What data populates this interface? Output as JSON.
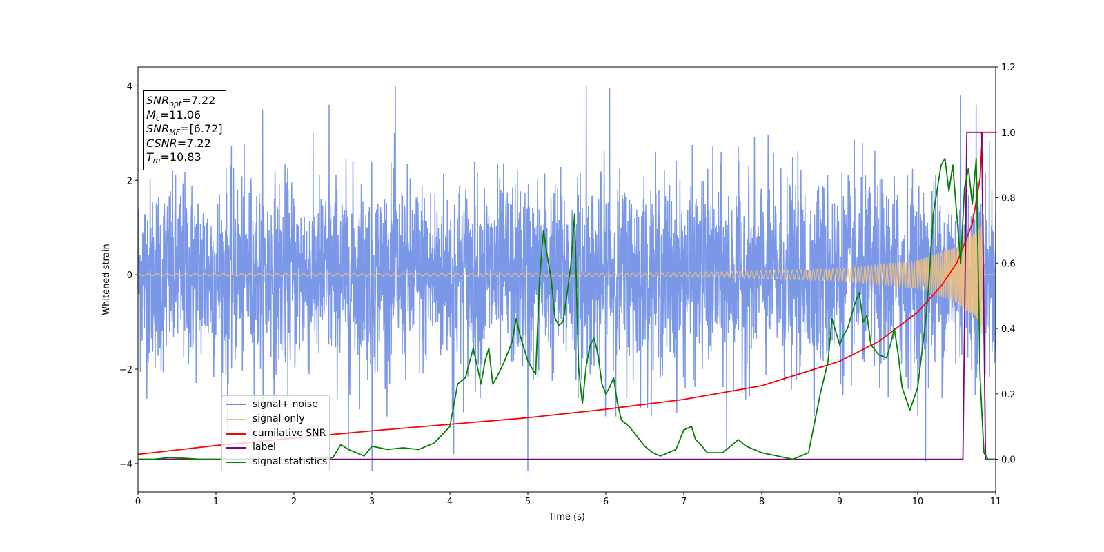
{
  "chart_data": {
    "type": "line",
    "xlabel": "Time (s)",
    "ylabel": "Whitened strain",
    "xlim": [
      0,
      11
    ],
    "ylim": [
      -4.6,
      4.4
    ],
    "y2lim": [
      -0.1,
      1.2
    ],
    "x_ticks": [
      "0",
      "1",
      "2",
      "3",
      "4",
      "5",
      "6",
      "7",
      "8",
      "9",
      "10",
      "11"
    ],
    "y_ticks": [
      "−4",
      "−2",
      "0",
      "2",
      "4"
    ],
    "y_tick_values": [
      -4,
      -2,
      0,
      2,
      4
    ],
    "y2_ticks": [
      "0.0",
      "0.2",
      "0.4",
      "0.6",
      "0.8",
      "1.0",
      "1.2"
    ],
    "y2_tick_values": [
      0.0,
      0.2,
      0.4,
      0.6,
      0.8,
      1.0,
      1.2
    ],
    "info_box": {
      "line1": {
        "label": "SNR",
        "sub": "opt",
        "value": "=7.22"
      },
      "line2": {
        "label": "M",
        "sub": "c",
        "value": "=11.06"
      },
      "line3": {
        "label": "SNR",
        "sub": "MF",
        "value": "=[6.72]"
      },
      "line4": {
        "label": "CSNR",
        "value": "=7.22"
      },
      "line5": {
        "label": "T",
        "sub": "m",
        "value": "=10.83"
      }
    },
    "legend": {
      "placement": "lower-left",
      "items": [
        {
          "label": "signal+ noise",
          "color": "#6b8ce6"
        },
        {
          "label": "signal only",
          "color": "#f5c27a"
        },
        {
          "label": "cumilative SNR",
          "color": "#ff0000"
        },
        {
          "label": "label",
          "color": "#800080"
        },
        {
          "label": "signal statistics",
          "color": "#008000"
        }
      ]
    },
    "series": [
      {
        "name": "signal+ noise",
        "axis": "left",
        "color": "#6b8ce6",
        "noise_sigma": 1.0,
        "extreme_spikes": [
          [
            1.15,
            -3.3
          ],
          [
            1.6,
            3.5
          ],
          [
            2.45,
            3.6
          ],
          [
            2.7,
            -3.7
          ],
          [
            3.0,
            -4.15
          ],
          [
            3.3,
            4.0
          ],
          [
            4.05,
            -3.8
          ],
          [
            5.0,
            -4.15
          ],
          [
            5.75,
            4.0
          ],
          [
            6.05,
            3.95
          ],
          [
            7.55,
            -3.7
          ],
          [
            10.1,
            -3.95
          ],
          [
            10.55,
            3.8
          ],
          [
            10.75,
            3.6
          ]
        ]
      },
      {
        "name": "signal only",
        "axis": "left",
        "color": "#f5c27a",
        "amplitude_envelope": [
          [
            0,
            0.02
          ],
          [
            4,
            0.03
          ],
          [
            7,
            0.05
          ],
          [
            8,
            0.08
          ],
          [
            9,
            0.13
          ],
          [
            10,
            0.3
          ],
          [
            10.5,
            0.6
          ],
          [
            10.8,
            1.0
          ],
          [
            10.83,
            1.35
          ],
          [
            10.85,
            0.0
          ],
          [
            11,
            0.0
          ]
        ]
      },
      {
        "name": "cumilative SNR",
        "axis": "right",
        "color": "#ff0000",
        "x": [
          0,
          1,
          2,
          3,
          4,
          5,
          6,
          7,
          8,
          9,
          9.5,
          10,
          10.3,
          10.5,
          10.7,
          10.8,
          10.83,
          11
        ],
        "y": [
          0.015,
          0.042,
          0.065,
          0.087,
          0.107,
          0.127,
          0.153,
          0.183,
          0.225,
          0.3,
          0.36,
          0.45,
          0.53,
          0.6,
          0.72,
          0.86,
          1.0,
          1.0
        ]
      },
      {
        "name": "label",
        "axis": "right",
        "color": "#800080",
        "x": [
          0,
          10.58,
          10.63,
          10.8,
          10.82,
          10.87,
          11
        ],
        "y": [
          0,
          0,
          1,
          1,
          1,
          0,
          0
        ]
      },
      {
        "name": "signal statistics",
        "axis": "right",
        "color": "#008000",
        "x": [
          0,
          0.2,
          0.4,
          0.6,
          0.8,
          1.0,
          1.5,
          2.0,
          2.5,
          2.6,
          2.7,
          2.8,
          2.9,
          3.0,
          3.1,
          3.2,
          3.4,
          3.6,
          3.8,
          4.0,
          4.1,
          4.2,
          4.3,
          4.4,
          4.45,
          4.5,
          4.55,
          4.6,
          4.7,
          4.8,
          4.85,
          4.9,
          5.0,
          5.1,
          5.15,
          5.2,
          5.25,
          5.3,
          5.35,
          5.4,
          5.45,
          5.5,
          5.55,
          5.6,
          5.65,
          5.7,
          5.75,
          5.8,
          5.85,
          5.9,
          5.95,
          6.0,
          6.05,
          6.1,
          6.15,
          6.2,
          6.3,
          6.4,
          6.5,
          6.6,
          6.7,
          6.8,
          6.9,
          7.0,
          7.1,
          7.15,
          7.2,
          7.3,
          7.4,
          7.5,
          7.6,
          7.7,
          7.8,
          7.9,
          8.0,
          8.2,
          8.4,
          8.6,
          8.75,
          8.85,
          8.9,
          9.0,
          9.05,
          9.1,
          9.2,
          9.25,
          9.3,
          9.35,
          9.4,
          9.5,
          9.6,
          9.65,
          9.7,
          9.75,
          9.8,
          9.9,
          10.0,
          10.1,
          10.15,
          10.2,
          10.3,
          10.35,
          10.4,
          10.45,
          10.5,
          10.55,
          10.6,
          10.65,
          10.7,
          10.75,
          10.8,
          10.85,
          10.9,
          11.0
        ],
        "y": [
          0.0,
          0.0,
          0.005,
          0.003,
          0.0,
          0.0,
          0.0,
          0.0,
          0.005,
          0.045,
          0.03,
          0.02,
          0.01,
          0.04,
          0.035,
          0.03,
          0.035,
          0.03,
          0.05,
          0.1,
          0.23,
          0.25,
          0.34,
          0.23,
          0.3,
          0.34,
          0.23,
          0.25,
          0.3,
          0.36,
          0.43,
          0.38,
          0.3,
          0.26,
          0.55,
          0.7,
          0.62,
          0.55,
          0.43,
          0.41,
          0.42,
          0.5,
          0.59,
          0.75,
          0.28,
          0.17,
          0.29,
          0.35,
          0.37,
          0.32,
          0.23,
          0.2,
          0.22,
          0.25,
          0.17,
          0.12,
          0.1,
          0.07,
          0.04,
          0.02,
          0.01,
          0.02,
          0.03,
          0.09,
          0.1,
          0.06,
          0.05,
          0.02,
          0.02,
          0.02,
          0.04,
          0.06,
          0.04,
          0.03,
          0.02,
          0.01,
          0.0,
          0.02,
          0.2,
          0.3,
          0.43,
          0.35,
          0.38,
          0.4,
          0.48,
          0.51,
          0.42,
          0.44,
          0.35,
          0.32,
          0.31,
          0.35,
          0.4,
          0.32,
          0.22,
          0.15,
          0.22,
          0.42,
          0.56,
          0.75,
          0.9,
          0.92,
          0.82,
          0.9,
          0.75,
          0.6,
          0.83,
          0.89,
          0.78,
          0.92,
          0.25,
          0.02,
          0.0,
          0.0
        ]
      }
    ]
  }
}
